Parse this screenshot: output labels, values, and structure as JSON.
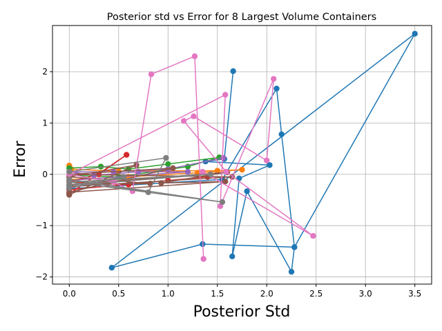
{
  "chart_data": {
    "type": "line",
    "title": "Posterior std vs Error for 8 Largest Volume Containers",
    "xlabel": "Posterior Std",
    "ylabel": "Error",
    "xlim": [
      -0.17,
      3.67
    ],
    "ylim": [
      -2.14,
      2.9
    ],
    "xticks": [
      0.0,
      0.5,
      1.0,
      1.5,
      2.0,
      2.5,
      3.0,
      3.5
    ],
    "xtick_labels": [
      "0.0",
      "0.5",
      "1.0",
      "1.5",
      "2.0",
      "2.5",
      "3.0",
      "3.5"
    ],
    "yticks": [
      -2,
      -1,
      0,
      1,
      2
    ],
    "ytick_labels": [
      "−2",
      "−1",
      "0",
      "1",
      "2"
    ],
    "grid": true,
    "legend": "none",
    "series": [
      {
        "color": "#1f77b4",
        "points": [
          [
            1.66,
            2.01
          ],
          [
            1.57,
            0.3
          ],
          [
            1.38,
            0.25
          ],
          [
            2.03,
            0.18
          ],
          [
            1.72,
            -0.08
          ],
          [
            1.65,
            -1.6
          ],
          [
            1.8,
            -0.33
          ],
          [
            2.25,
            -1.9
          ],
          [
            2.28,
            -1.42
          ],
          [
            1.35,
            -1.36
          ],
          [
            0.43,
            -1.82
          ],
          [
            3.5,
            2.74
          ],
          [
            2.28,
            -1.42
          ],
          [
            2.15,
            0.78
          ],
          [
            2.1,
            1.67
          ],
          [
            1.55,
            -0.1
          ],
          [
            0.0,
            -0.28
          ]
        ]
      },
      {
        "color": "#ff7f0e",
        "points": [
          [
            0.0,
            0.17
          ],
          [
            0.02,
            0.1
          ],
          [
            0.5,
            0.06
          ],
          [
            1.0,
            0.07
          ],
          [
            1.5,
            0.07
          ],
          [
            1.75,
            0.09
          ],
          [
            1.3,
            0.03
          ],
          [
            0.6,
            -0.05
          ],
          [
            0.0,
            -0.1
          ]
        ]
      },
      {
        "color": "#2ca02c",
        "points": [
          [
            0.0,
            0.12
          ],
          [
            0.32,
            0.15
          ],
          [
            0.6,
            0.1
          ],
          [
            1.0,
            0.2
          ],
          [
            1.52,
            0.33
          ],
          [
            1.2,
            0.15
          ],
          [
            0.5,
            -0.05
          ],
          [
            0.0,
            -0.02
          ]
        ]
      },
      {
        "color": "#d62728",
        "points": [
          [
            0.0,
            -0.38
          ],
          [
            0.58,
            0.38
          ],
          [
            0.3,
            0.0
          ],
          [
            0.0,
            -0.15
          ],
          [
            0.6,
            -0.2
          ],
          [
            1.0,
            -0.12
          ],
          [
            1.4,
            -0.05
          ],
          [
            0.0,
            -0.3
          ]
        ]
      },
      {
        "color": "#9467bd",
        "points": [
          [
            1.56,
            0.32
          ],
          [
            1.0,
            0.1
          ],
          [
            0.45,
            0.05
          ],
          [
            0.0,
            0.05
          ],
          [
            0.25,
            -0.02
          ],
          [
            0.7,
            0.05
          ],
          [
            1.2,
            0.05
          ],
          [
            0.0,
            -0.12
          ]
        ]
      },
      {
        "color": "#8c564b",
        "points": [
          [
            0.0,
            -0.4
          ],
          [
            0.68,
            0.18
          ],
          [
            0.0,
            -0.05
          ],
          [
            0.82,
            -0.18
          ],
          [
            0.0,
            -0.2
          ],
          [
            1.6,
            0.04
          ],
          [
            0.93,
            -0.17
          ],
          [
            1.58,
            -0.14
          ],
          [
            0.0,
            -0.35
          ],
          [
            1.05,
            0.12
          ],
          [
            0.0,
            0.0
          ],
          [
            1.65,
            -0.05
          ],
          [
            0.0,
            -0.24
          ]
        ]
      },
      {
        "color": "#e377c2",
        "points": [
          [
            1.36,
            -1.65
          ],
          [
            1.27,
            2.3
          ],
          [
            0.83,
            1.95
          ],
          [
            0.64,
            -0.33
          ],
          [
            0.45,
            -0.15
          ],
          [
            0.0,
            0.0
          ],
          [
            1.58,
            1.55
          ],
          [
            1.53,
            -0.62
          ],
          [
            2.07,
            1.86
          ],
          [
            2.0,
            0.27
          ],
          [
            1.26,
            1.13
          ],
          [
            1.16,
            1.04
          ],
          [
            1.59,
            0.05
          ],
          [
            2.47,
            -1.2
          ],
          [
            1.35,
            0.05
          ]
        ]
      },
      {
        "color": "#7f7f7f",
        "points": [
          [
            0.0,
            0.05
          ],
          [
            0.98,
            0.32
          ],
          [
            0.8,
            -0.35
          ],
          [
            0.0,
            -0.1
          ],
          [
            1.55,
            -0.54
          ],
          [
            0.0,
            -0.15
          ],
          [
            1.43,
            0.0
          ],
          [
            0.0,
            -0.22
          ],
          [
            0.55,
            -0.05
          ],
          [
            0.0,
            -0.27
          ]
        ]
      }
    ]
  }
}
